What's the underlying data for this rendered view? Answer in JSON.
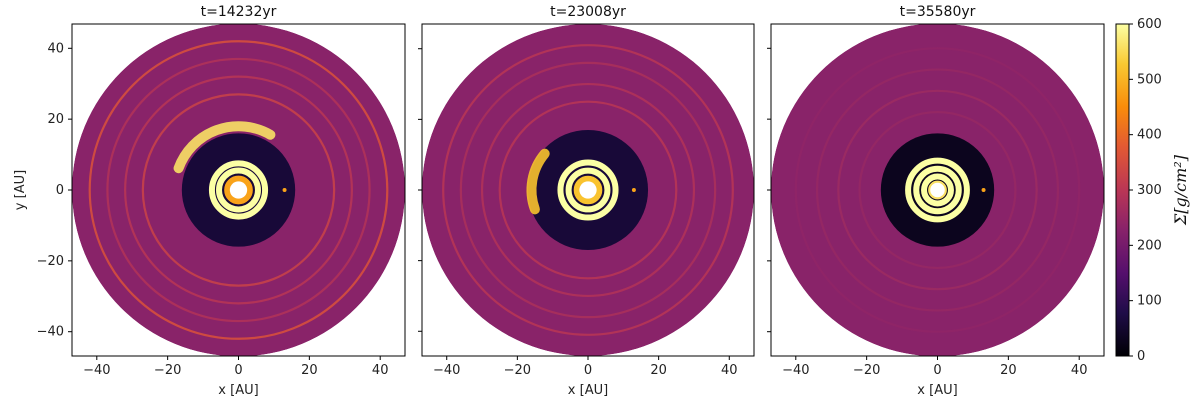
{
  "chart_data": {
    "type": "heatmap",
    "description_quantity": "surface density",
    "panels": [
      {
        "title": "t=14232yr",
        "xlabel": "x [AU]",
        "ylabel": "y [AU]",
        "xticks": [
          "−40",
          "−20",
          "0",
          "20",
          "40"
        ],
        "yticks": [
          "40",
          "20",
          "0",
          "−20",
          "−40"
        ],
        "xlim": [
          -47,
          47
        ],
        "ylim": [
          -47,
          47
        ],
        "outer_radius": 47,
        "inner_radius": 1.6,
        "planet_x": 13,
        "planet_y": 0,
        "spiral": {
          "angle_start": 200,
          "angle_end": 300,
          "radius": 18,
          "level": 560
        },
        "rings": [
          {
            "r": 3.2,
            "level": 480
          },
          {
            "r": 5.5,
            "level": 600
          },
          {
            "r": 7.5,
            "level": 620
          },
          {
            "r": 27,
            "level": 330
          },
          {
            "r": 32,
            "level": 300
          },
          {
            "r": 37,
            "level": 290
          },
          {
            "r": 42,
            "level": 360
          }
        ],
        "gap": {
          "r_in": 9,
          "r_out": 16,
          "level": 60
        }
      },
      {
        "title": "t=23008yr",
        "xlabel": "x [AU]",
        "ylabel": "",
        "xticks": [
          "−40",
          "−20",
          "0",
          "20",
          "40"
        ],
        "yticks": [],
        "xlim": [
          -47,
          47
        ],
        "ylim": [
          -47,
          47
        ],
        "outer_radius": 47,
        "inner_radius": 1.6,
        "planet_x": 13,
        "planet_y": 0,
        "spiral": {
          "angle_start": 160,
          "angle_end": 220,
          "radius": 16,
          "level": 520
        },
        "rings": [
          {
            "r": 3.2,
            "level": 520
          },
          {
            "r": 5.5,
            "level": 620
          },
          {
            "r": 7.8,
            "level": 640
          },
          {
            "r": 25,
            "level": 300
          },
          {
            "r": 30,
            "level": 290
          },
          {
            "r": 36,
            "level": 280
          },
          {
            "r": 41,
            "level": 300
          }
        ],
        "gap": {
          "r_in": 10,
          "r_out": 17,
          "level": 60
        }
      },
      {
        "title": "t=35580yr",
        "xlabel": "x [AU]",
        "ylabel": "",
        "xticks": [
          "−40",
          "−20",
          "0",
          "20",
          "40"
        ],
        "yticks": [],
        "xlim": [
          -47,
          47
        ],
        "ylim": [
          -47,
          47
        ],
        "outer_radius": 47,
        "inner_radius": 1.2,
        "planet_x": 13,
        "planet_y": 0,
        "spiral": null,
        "rings": [
          {
            "r": 1.8,
            "level": 560
          },
          {
            "r": 3.8,
            "level": 640
          },
          {
            "r": 6.0,
            "level": 640
          },
          {
            "r": 8.3,
            "level": 620
          },
          {
            "r": 22,
            "level": 250
          },
          {
            "r": 28,
            "level": 260
          },
          {
            "r": 34,
            "level": 250
          },
          {
            "r": 40,
            "level": 240
          }
        ],
        "gap": {
          "r_in": 10,
          "r_out": 16,
          "level": 30
        }
      }
    ],
    "colorbar": {
      "label": "Σ[g/cm²]",
      "range": [
        0,
        600
      ],
      "ticks": [
        "0",
        "100",
        "200",
        "300",
        "400",
        "500",
        "600"
      ],
      "colormap": "inferno"
    },
    "background_level": 230
  }
}
